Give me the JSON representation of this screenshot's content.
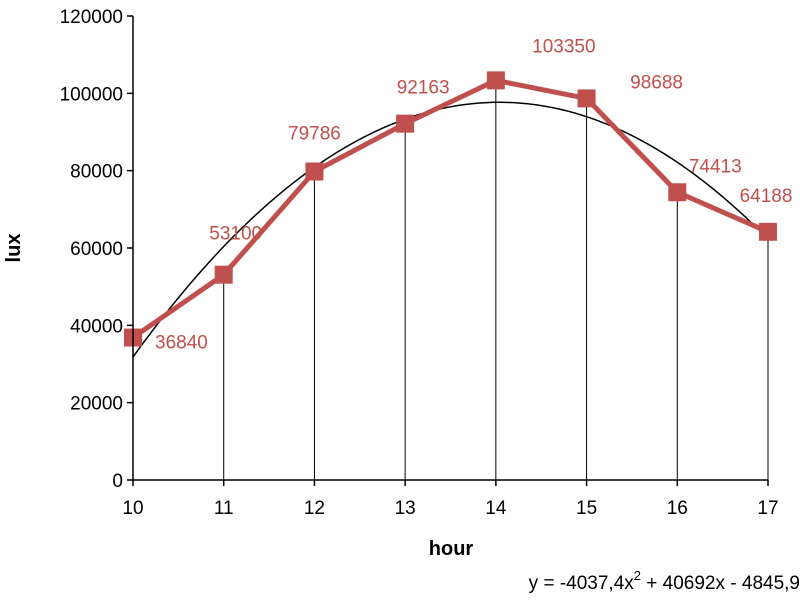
{
  "chart_data": {
    "type": "line",
    "title": "",
    "xlabel": "hour",
    "ylabel": "lux",
    "x": [
      10,
      11,
      12,
      13,
      14,
      15,
      16,
      17
    ],
    "xlim": [
      10,
      17
    ],
    "ylim": [
      0,
      120000
    ],
    "xticks": [
      "10",
      "11",
      "12",
      "13",
      "14",
      "15",
      "16",
      "17"
    ],
    "yticks": [
      "0",
      "20000",
      "40000",
      "60000",
      "80000",
      "100000",
      "120000"
    ],
    "series": [
      {
        "values": [
          36840,
          53100,
          79786,
          92163,
          103350,
          98688,
          74413,
          64188
        ],
        "labels": [
          "36840",
          "53100",
          "79786",
          "92163",
          "103350",
          "98688",
          "74413",
          "64188"
        ],
        "color": "#c0504d",
        "marker": "square"
      }
    ],
    "trendline": {
      "type": "polynomial",
      "order": 2,
      "color": "#000000",
      "equation_prefix": "y = -4037,4x",
      "equation_exponent": "2",
      "equation_suffix": " + 40692x - 4845,9"
    },
    "drop_lines": true,
    "grid": false,
    "legend": "none"
  }
}
